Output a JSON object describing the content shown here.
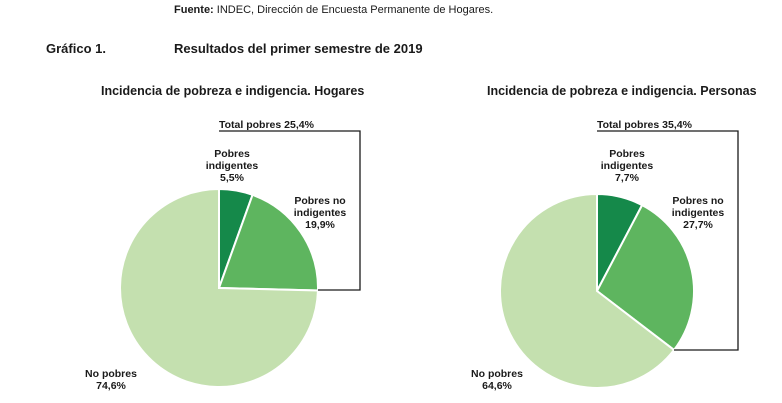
{
  "source": {
    "label": "Fuente:",
    "text": "INDEC, Dirección de Encuesta Permanente de Hogares."
  },
  "figure": {
    "label": "Gráfico 1.",
    "title": "Resultados del primer semestre de 2019"
  },
  "colors": {
    "indigentes": "#15894a",
    "no_indigentes": "#5eb55f",
    "no_pobres": "#c4e0af"
  },
  "chart_data": [
    {
      "type": "pie",
      "title": "Incidencia de pobreza e indigencia. Hogares",
      "total_label": "Total pobres 25,4%",
      "slices": [
        {
          "label": [
            "Pobres",
            "indigentes"
          ],
          "value": 5.5,
          "value_label": "5,5%"
        },
        {
          "label": [
            "Pobres no",
            "indigentes"
          ],
          "value": 19.9,
          "value_label": "19,9%"
        },
        {
          "label": [
            "No pobres"
          ],
          "value": 74.6,
          "value_label": "74,6%"
        }
      ]
    },
    {
      "type": "pie",
      "title": "Incidencia de pobreza e indigencia. Personas",
      "total_label": "Total pobres 35,4%",
      "slices": [
        {
          "label": [
            "Pobres",
            "indigentes"
          ],
          "value": 7.7,
          "value_label": "7,7%"
        },
        {
          "label": [
            "Pobres no",
            "indigentes"
          ],
          "value": 27.7,
          "value_label": "27,7%"
        },
        {
          "label": [
            "No pobres"
          ],
          "value": 64.6,
          "value_label": "64,6%"
        }
      ]
    }
  ]
}
